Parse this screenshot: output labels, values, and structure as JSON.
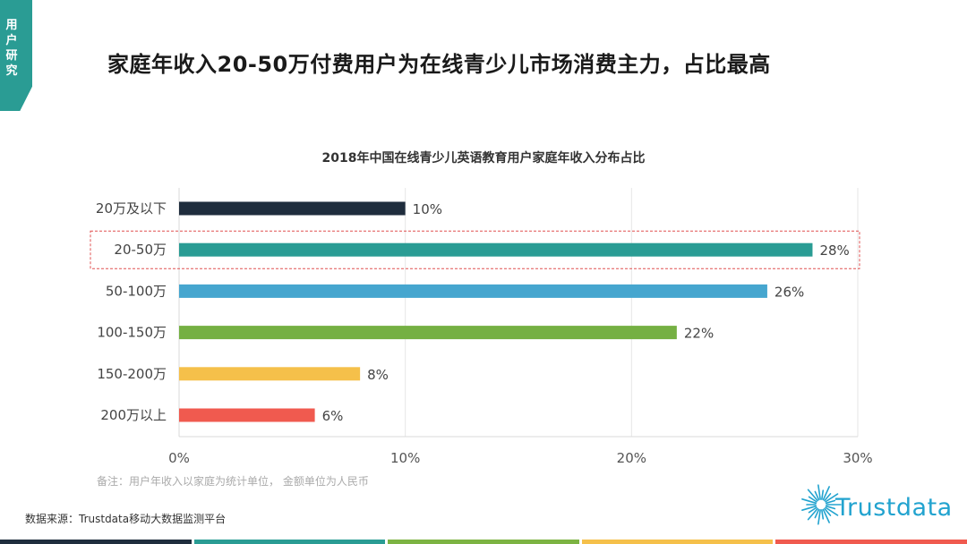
{
  "side_tab": {
    "label": "用户研究"
  },
  "headline": "家庭年收入20-50万付费用户为在线青少儿市场消费主力，占比最高",
  "note": "备注：用户年收入以家庭为统计单位， 金额单位为人民币",
  "source": "数据来源：Trustdata移动大数据监测平台",
  "logo": {
    "text": "Trustdata",
    "color": "#22a3cf"
  },
  "footer_colors": [
    "#1f2d3d",
    "#2a9c94",
    "#7cb342",
    "#f5c04a",
    "#f05a4f"
  ],
  "chart_data": {
    "type": "bar",
    "orientation": "horizontal",
    "title": "2018年中国在线青少儿英语教育用户家庭年收入分布占比",
    "categories": [
      "20万及以下",
      "20-50万",
      "50-100万",
      "100-150万",
      "150-200万",
      "200万以上"
    ],
    "values": [
      10,
      28,
      26,
      22,
      8,
      6
    ],
    "value_labels": [
      "10%",
      "28%",
      "26%",
      "22%",
      "8%",
      "6%"
    ],
    "colors": [
      "#1f2d3d",
      "#2a9c94",
      "#46a6cf",
      "#75b043",
      "#f5c04a",
      "#f05a4f"
    ],
    "xlim": [
      0,
      30
    ],
    "xticks": [
      "0%",
      "10%",
      "20%",
      "30%"
    ],
    "highlight_index": 1,
    "highlight_color": "#e05050",
    "grid": "vertical"
  }
}
